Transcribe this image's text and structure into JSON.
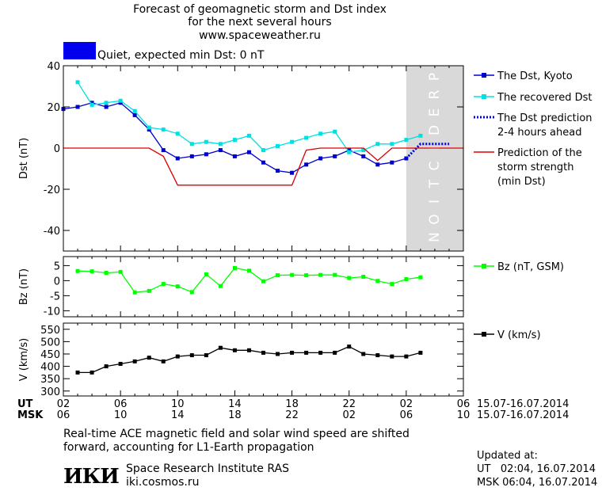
{
  "header": {
    "title_line1": "Forecast of geomagnetic storm and Dst index",
    "title_line2": "for the next several hours",
    "title_line3": "www.spaceweather.ru",
    "status_text": "Quiet, expected min Dst: 0 nT",
    "status_color": "#0000ee"
  },
  "chart_data": [
    {
      "type": "line",
      "panel": "dst",
      "ylabel": "Dst (nT)",
      "ylim": [
        -50,
        40
      ],
      "yticks": [
        40,
        20,
        0,
        -20,
        -40
      ],
      "xlim": [
        2,
        30
      ],
      "prediction_band": [
        26,
        30
      ],
      "prediction_label": "PREDICTION",
      "series": [
        {
          "name": "The Dst, Kyoto",
          "color": "#0000cc",
          "marker": "square",
          "x": [
            2,
            3,
            4,
            5,
            6,
            7,
            8,
            9,
            10,
            11,
            12,
            13,
            14,
            15,
            16,
            17,
            18,
            19,
            20,
            21,
            22,
            23,
            24,
            25,
            26
          ],
          "y": [
            19,
            20,
            22,
            20,
            22,
            16,
            9,
            -1,
            -5,
            -4,
            -3,
            -1,
            -4,
            -2,
            -7,
            -11,
            -12,
            -8,
            -5,
            -4,
            -1,
            -4,
            -8,
            -7,
            -5
          ]
        },
        {
          "name": "The recovered Dst",
          "color": "#00e0e0",
          "marker": "square",
          "x": [
            3,
            4,
            5,
            6,
            7,
            8,
            9,
            10,
            11,
            12,
            13,
            14,
            15,
            16,
            17,
            18,
            19,
            20,
            21,
            22,
            23,
            24,
            25,
            26,
            27
          ],
          "y": [
            32,
            21,
            22,
            23,
            18,
            10,
            9,
            7,
            2,
            3,
            2,
            4,
            6,
            -1,
            1,
            3,
            5,
            7,
            8,
            -2,
            -1,
            2,
            2,
            4,
            6
          ]
        },
        {
          "name": "The Dst prediction\n2-4 hours ahead",
          "color": "#0000cc",
          "style": "dotted",
          "x": [
            26,
            27,
            28,
            29
          ],
          "y": [
            -5,
            2,
            2,
            2
          ]
        },
        {
          "name": "Prediction of the\nstorm strength\n(min Dst)",
          "color": "#dd0000",
          "x": [
            2,
            8,
            9,
            10,
            18,
            19,
            20,
            23,
            24,
            25,
            30
          ],
          "y": [
            0,
            0,
            -4,
            -18,
            -18,
            -1,
            0,
            0,
            -6,
            0,
            0
          ]
        }
      ]
    },
    {
      "type": "line",
      "panel": "bz",
      "ylabel": "Bz (nT)",
      "ylim": [
        -12,
        8
      ],
      "yticks": [
        5,
        0,
        -5,
        -10
      ],
      "series": [
        {
          "name": "Bz (nT, GSM)",
          "color": "#00ff00",
          "marker": "square",
          "x": [
            3,
            4,
            5,
            6,
            7,
            8,
            9,
            10,
            11,
            12,
            13,
            14,
            15,
            16,
            17,
            18,
            19,
            20,
            21,
            22,
            23,
            24,
            25,
            26,
            27
          ],
          "y": [
            3.2,
            3.1,
            2.6,
            2.9,
            -3.9,
            -3.4,
            -1.1,
            -1.9,
            -3.8,
            2.1,
            -1.8,
            4.2,
            3.3,
            -0.2,
            1.8,
            1.9,
            1.8,
            1.9,
            1.9,
            0.9,
            1.3,
            -0.1,
            -1.1,
            0.5,
            1.1
          ]
        }
      ]
    },
    {
      "type": "line",
      "panel": "v",
      "ylabel": "V (km/s)",
      "ylim": [
        280,
        575
      ],
      "yticks": [
        550,
        500,
        450,
        400,
        350,
        300
      ],
      "series": [
        {
          "name": "V (km/s)",
          "color": "#000000",
          "marker": "square",
          "x": [
            3,
            4,
            5,
            6,
            7,
            8,
            9,
            10,
            11,
            12,
            13,
            14,
            15,
            16,
            17,
            18,
            19,
            20,
            21,
            22,
            23,
            24,
            25,
            26,
            27
          ],
          "y": [
            375,
            375,
            400,
            410,
            420,
            435,
            420,
            440,
            445,
            445,
            475,
            465,
            465,
            455,
            450,
            455,
            455,
            455,
            455,
            480,
            450,
            445,
            440,
            440,
            455
          ]
        }
      ]
    }
  ],
  "x_axis": {
    "ut_label": "UT",
    "msk_label": "MSK",
    "ut_ticks": [
      "02",
      "06",
      "10",
      "14",
      "18",
      "22",
      "02",
      "06"
    ],
    "msk_ticks": [
      "06",
      "10",
      "14",
      "18",
      "22",
      "02",
      "06",
      "10"
    ],
    "date_range": "15.07-16.07.2014"
  },
  "footer": {
    "note_line1": "Real-time ACE magnetic field and solar wind speed are shifted",
    "note_line2": "forward, accounting for L1-Earth propagation",
    "updated_label": "Updated at:",
    "updated_ut": "UT   02:04, 16.07.2014",
    "updated_msk": "MSK 06:04, 16.07.2014",
    "logo_text": "ИКИ",
    "org_name": "Space Research Institute RAS",
    "org_site": "iki.cosmos.ru"
  }
}
